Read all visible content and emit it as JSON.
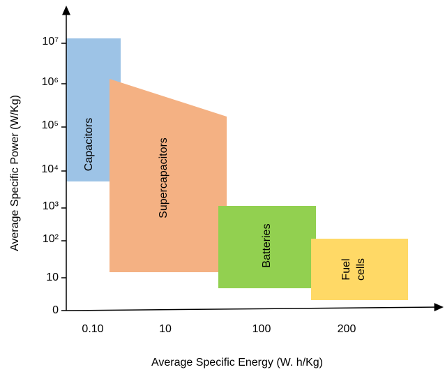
{
  "axes": {
    "x_title": "Average Specific Energy (W. h/Kg)",
    "y_title": "Average Specific Power (W/Kg)",
    "x_tick_labels": [
      "0.10",
      "10",
      "100",
      "200"
    ],
    "y_tick_labels": [
      "0",
      "10",
      "10²",
      "10³",
      "10⁴",
      "10⁵",
      "10⁶",
      "10⁷"
    ]
  },
  "regions": [
    {
      "label": [
        "Capacitors"
      ]
    },
    {
      "label": [
        "Supercapacitors"
      ]
    },
    {
      "label": [
        "Batteries"
      ]
    },
    {
      "label": [
        "Fuel",
        "cells"
      ]
    }
  ]
}
